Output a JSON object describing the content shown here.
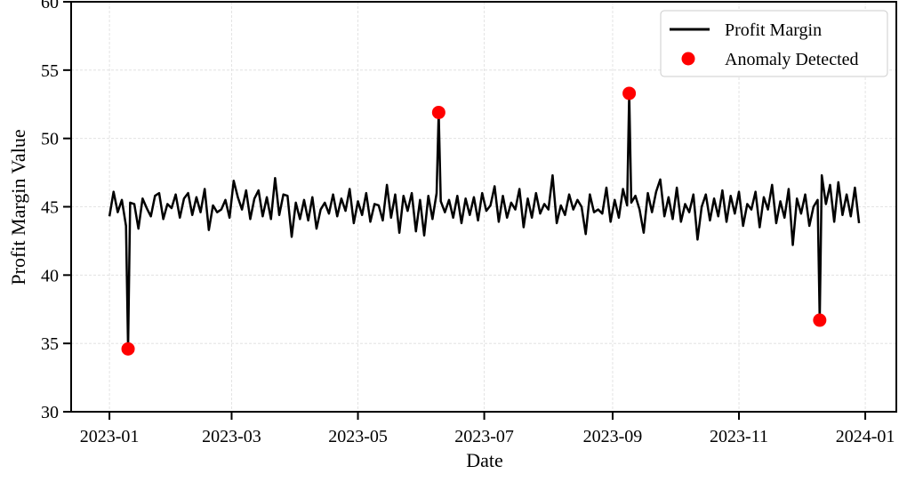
{
  "chart_data": {
    "type": "line",
    "xlabel": "Date",
    "ylabel": "Profit Margin Value",
    "xlim": [
      -18.5,
      380
    ],
    "ylim": [
      30,
      60
    ],
    "xticks": [
      {
        "value": 0,
        "label": "2023-01"
      },
      {
        "value": 59,
        "label": "2023-03"
      },
      {
        "value": 120,
        "label": "2023-05"
      },
      {
        "value": 181,
        "label": "2023-07"
      },
      {
        "value": 243,
        "label": "2023-09"
      },
      {
        "value": 304,
        "label": "2023-11"
      },
      {
        "value": 365,
        "label": "2024-01"
      }
    ],
    "yticks": [
      30,
      35,
      40,
      45,
      50,
      55,
      60
    ],
    "grid": true,
    "legend": "upper right",
    "series": [
      {
        "name": "Profit Margin",
        "type": "line",
        "color": "#000000",
        "x": [
          0,
          2,
          4,
          6,
          8,
          9,
          10,
          12,
          14,
          16,
          18,
          20,
          22,
          24,
          26,
          28,
          30,
          32,
          34,
          36,
          38,
          40,
          42,
          44,
          46,
          48,
          50,
          52,
          54,
          56,
          58,
          60,
          62,
          64,
          66,
          68,
          70,
          72,
          74,
          76,
          78,
          80,
          82,
          84,
          86,
          88,
          90,
          92,
          94,
          96,
          98,
          100,
          102,
          104,
          106,
          108,
          110,
          112,
          114,
          116,
          118,
          120,
          122,
          124,
          126,
          128,
          130,
          132,
          134,
          136,
          138,
          140,
          142,
          144,
          146,
          148,
          150,
          152,
          154,
          156,
          158,
          159,
          160,
          162,
          164,
          166,
          168,
          170,
          172,
          174,
          176,
          178,
          180,
          182,
          184,
          186,
          188,
          190,
          192,
          194,
          196,
          198,
          200,
          202,
          204,
          206,
          208,
          210,
          212,
          214,
          216,
          218,
          220,
          222,
          224,
          226,
          228,
          230,
          232,
          234,
          236,
          238,
          240,
          242,
          244,
          246,
          248,
          250,
          251,
          252,
          254,
          256,
          258,
          260,
          262,
          264,
          266,
          268,
          270,
          272,
          274,
          276,
          278,
          280,
          282,
          284,
          286,
          288,
          290,
          292,
          294,
          296,
          298,
          300,
          302,
          304,
          306,
          308,
          310,
          312,
          314,
          316,
          318,
          320,
          322,
          324,
          326,
          328,
          330,
          332,
          334,
          336,
          338,
          340,
          342,
          343,
          344,
          346,
          348,
          350,
          352,
          354,
          356,
          358,
          360,
          362
        ],
        "values": [
          44.3,
          46.1,
          44.6,
          45.5,
          43.6,
          34.6,
          45.3,
          45.2,
          43.4,
          45.6,
          44.9,
          44.3,
          45.8,
          46.0,
          44.1,
          45.2,
          44.9,
          45.9,
          44.2,
          45.6,
          46.0,
          44.4,
          45.7,
          44.6,
          46.3,
          43.3,
          45.1,
          44.6,
          44.8,
          45.5,
          44.2,
          46.9,
          45.7,
          44.8,
          46.2,
          44.1,
          45.6,
          46.2,
          44.3,
          45.7,
          44.1,
          47.1,
          44.4,
          45.9,
          45.8,
          42.8,
          45.3,
          44.1,
          45.5,
          44.0,
          45.7,
          43.4,
          44.8,
          45.3,
          44.5,
          45.9,
          44.3,
          45.6,
          44.7,
          46.3,
          43.8,
          45.4,
          44.4,
          46.0,
          43.9,
          45.2,
          45.1,
          44.0,
          46.6,
          44.2,
          45.9,
          43.1,
          45.8,
          44.7,
          46.0,
          43.2,
          45.5,
          42.9,
          45.8,
          44.1,
          46.0,
          51.9,
          45.4,
          44.6,
          45.5,
          44.2,
          45.8,
          43.8,
          45.6,
          44.4,
          45.7,
          44.0,
          46.0,
          44.7,
          45.1,
          46.5,
          43.9,
          45.8,
          44.2,
          45.3,
          44.8,
          46.3,
          43.5,
          45.6,
          44.2,
          46.0,
          44.5,
          45.2,
          44.8,
          47.3,
          43.8,
          45.1,
          44.4,
          45.9,
          44.8,
          45.5,
          45.0,
          43.0,
          45.9,
          44.6,
          44.8,
          44.5,
          46.4,
          43.9,
          45.5,
          44.2,
          46.3,
          45.1,
          53.3,
          45.3,
          45.8,
          44.8,
          43.1,
          46.0,
          44.6,
          46.1,
          47.0,
          44.3,
          45.7,
          44.1,
          46.4,
          43.9,
          45.2,
          44.6,
          45.9,
          42.6,
          45.0,
          45.9,
          44.0,
          45.6,
          44.3,
          46.2,
          43.9,
          45.8,
          44.5,
          46.1,
          43.6,
          45.2,
          44.8,
          46.1,
          43.5,
          45.7,
          44.8,
          46.6,
          43.8,
          45.4,
          44.2,
          46.3,
          42.2,
          45.6,
          44.5,
          45.9,
          43.6,
          45.0,
          45.5,
          36.7,
          47.3,
          45.2,
          46.6,
          43.9,
          46.8,
          44.4,
          45.9,
          44.3,
          46.4,
          43.8
        ]
      },
      {
        "name": "Anomaly Detected",
        "type": "scatter",
        "color": "#ff0000",
        "x": [
          9,
          159,
          251,
          343
        ],
        "values": [
          34.6,
          51.9,
          53.3,
          36.7
        ]
      }
    ]
  }
}
